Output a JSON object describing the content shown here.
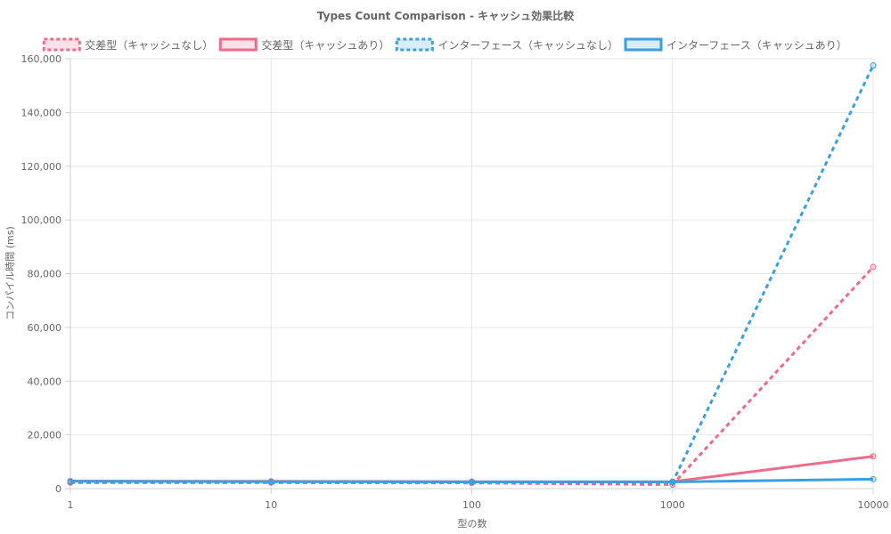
{
  "chart_data": {
    "type": "line",
    "title": "Types Count Comparison - キャッシュ効果比較",
    "xlabel": "型の数",
    "ylabel": "コンパイル時間 (ms)",
    "x_scale": "log",
    "x": [
      1,
      10,
      100,
      1000,
      10000
    ],
    "x_tick_labels": [
      "1",
      "10",
      "100",
      "1000",
      "10000"
    ],
    "ylim": [
      0,
      160000
    ],
    "y_ticks": [
      0,
      20000,
      40000,
      60000,
      80000,
      100000,
      120000,
      140000,
      160000
    ],
    "y_tick_labels": [
      "0",
      "20,000",
      "40,000",
      "60,000",
      "80,000",
      "100,000",
      "120,000",
      "140,000",
      "160,000"
    ],
    "grid": true,
    "legend_position": "top",
    "series": [
      {
        "name": "交差型（キャッシュなし）",
        "values": [
          2200,
          2200,
          2100,
          1500,
          82500
        ],
        "color": "#f06a8a",
        "dashed": true
      },
      {
        "name": "交差型（キャッシュあり）",
        "values": [
          2800,
          2700,
          2600,
          2600,
          12000
        ],
        "color": "#f06a8a",
        "dashed": false
      },
      {
        "name": "インターフェース（キャッシュなし）",
        "values": [
          2500,
          2500,
          2400,
          2300,
          157500
        ],
        "color": "#3aa0e0",
        "dashed": true
      },
      {
        "name": "インターフェース（キャッシュあり）",
        "values": [
          2700,
          2600,
          2500,
          2500,
          3500
        ],
        "color": "#3aa0e0",
        "dashed": false
      }
    ]
  }
}
